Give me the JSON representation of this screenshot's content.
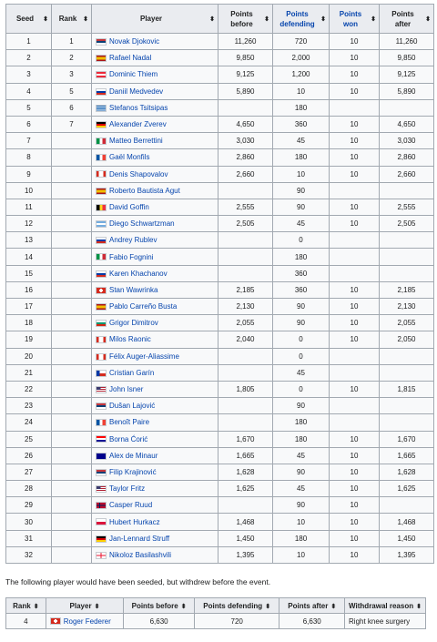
{
  "seeds_table": {
    "headers": {
      "seed": "Seed",
      "rank": "Rank",
      "player": "Player",
      "points_before": "Points before",
      "points_defending": "Points defending",
      "points_won": "Points won",
      "points_after": "Points after"
    },
    "sort_icon": "⬍",
    "rows": [
      {
        "seed": "1",
        "rank": "1",
        "player": "Novak Djokovic",
        "flag": "serbia",
        "before": "11,260",
        "defending": "720",
        "won": "10",
        "after": "11,260"
      },
      {
        "seed": "2",
        "rank": "2",
        "player": "Rafael Nadal",
        "flag": "spain",
        "before": "9,850",
        "defending": "2,000",
        "won": "10",
        "after": "9,850"
      },
      {
        "seed": "3",
        "rank": "3",
        "player": "Dominic Thiem",
        "flag": "austria",
        "before": "9,125",
        "defending": "1,200",
        "won": "10",
        "after": "9,125"
      },
      {
        "seed": "4",
        "rank": "5",
        "player": "Daniil Medvedev",
        "flag": "russia",
        "before": "5,890",
        "defending": "10",
        "won": "10",
        "after": "5,890"
      },
      {
        "seed": "5",
        "rank": "6",
        "player": "Stefanos Tsitsipas",
        "flag": "greece",
        "before": "",
        "defending": "180",
        "won": "",
        "after": ""
      },
      {
        "seed": "6",
        "rank": "7",
        "player": "Alexander Zverev",
        "flag": "germany",
        "before": "4,650",
        "defending": "360",
        "won": "10",
        "after": "4,650"
      },
      {
        "seed": "7",
        "rank": "",
        "player": "Matteo Berrettini",
        "flag": "italy",
        "before": "3,030",
        "defending": "45",
        "won": "10",
        "after": "3,030"
      },
      {
        "seed": "8",
        "rank": "",
        "player": "Gaël Monfils",
        "flag": "france",
        "before": "2,860",
        "defending": "180",
        "won": "10",
        "after": "2,860"
      },
      {
        "seed": "9",
        "rank": "",
        "player": "Denis Shapovalov",
        "flag": "canada",
        "before": "2,660",
        "defending": "10",
        "won": "10",
        "after": "2,660"
      },
      {
        "seed": "10",
        "rank": "",
        "player": "Roberto Bautista Agut",
        "flag": "spain",
        "before": "",
        "defending": "90",
        "won": "",
        "after": ""
      },
      {
        "seed": "11",
        "rank": "",
        "player": "David Goffin",
        "flag": "belgium",
        "before": "2,555",
        "defending": "90",
        "won": "10",
        "after": "2,555"
      },
      {
        "seed": "12",
        "rank": "",
        "player": "Diego Schwartzman",
        "flag": "argentina",
        "before": "2,505",
        "defending": "45",
        "won": "10",
        "after": "2,505"
      },
      {
        "seed": "13",
        "rank": "",
        "player": "Andrey Rublev",
        "flag": "russia",
        "before": "",
        "defending": "0",
        "won": "",
        "after": ""
      },
      {
        "seed": "14",
        "rank": "",
        "player": "Fabio Fognini",
        "flag": "italy",
        "before": "",
        "defending": "180",
        "won": "",
        "after": ""
      },
      {
        "seed": "15",
        "rank": "",
        "player": "Karen Khachanov",
        "flag": "russia",
        "before": "",
        "defending": "360",
        "won": "",
        "after": ""
      },
      {
        "seed": "16",
        "rank": "",
        "player": "Stan Wawrinka",
        "flag": "switzerland",
        "before": "2,185",
        "defending": "360",
        "won": "10",
        "after": "2,185"
      },
      {
        "seed": "17",
        "rank": "",
        "player": "Pablo Carreño Busta",
        "flag": "spain",
        "before": "2,130",
        "defending": "90",
        "won": "10",
        "after": "2,130"
      },
      {
        "seed": "18",
        "rank": "",
        "player": "Grigor Dimitrov",
        "flag": "bulgaria",
        "before": "2,055",
        "defending": "90",
        "won": "10",
        "after": "2,055"
      },
      {
        "seed": "19",
        "rank": "",
        "player": "Milos Raonic",
        "flag": "canada",
        "before": "2,040",
        "defending": "0",
        "won": "10",
        "after": "2,050"
      },
      {
        "seed": "20",
        "rank": "",
        "player": "Félix Auger-Aliassime",
        "flag": "canada",
        "before": "",
        "defending": "0",
        "won": "",
        "after": ""
      },
      {
        "seed": "21",
        "rank": "",
        "player": "Cristian Garín",
        "flag": "chile",
        "before": "",
        "defending": "45",
        "won": "",
        "after": ""
      },
      {
        "seed": "22",
        "rank": "",
        "player": "John Isner",
        "flag": "usa",
        "before": "1,805",
        "defending": "0",
        "won": "10",
        "after": "1,815"
      },
      {
        "seed": "23",
        "rank": "",
        "player": "Dušan Lajović",
        "flag": "serbia",
        "before": "",
        "defending": "90",
        "won": "",
        "after": ""
      },
      {
        "seed": "24",
        "rank": "",
        "player": "Benoît Paire",
        "flag": "france",
        "before": "",
        "defending": "180",
        "won": "",
        "after": ""
      },
      {
        "seed": "25",
        "rank": "",
        "player": "Borna Ćorić",
        "flag": "croatia",
        "before": "1,670",
        "defending": "180",
        "won": "10",
        "after": "1,670"
      },
      {
        "seed": "26",
        "rank": "",
        "player": "Alex de Minaur",
        "flag": "australia",
        "before": "1,665",
        "defending": "45",
        "won": "10",
        "after": "1,665"
      },
      {
        "seed": "27",
        "rank": "",
        "player": "Filip Krajinović",
        "flag": "serbia",
        "before": "1,628",
        "defending": "90",
        "won": "10",
        "after": "1,628"
      },
      {
        "seed": "28",
        "rank": "",
        "player": "Taylor Fritz",
        "flag": "usa",
        "before": "1,625",
        "defending": "45",
        "won": "10",
        "after": "1,625"
      },
      {
        "seed": "29",
        "rank": "",
        "player": "Casper Ruud",
        "flag": "norway",
        "before": "",
        "defending": "90",
        "won": "10",
        "after": ""
      },
      {
        "seed": "30",
        "rank": "",
        "player": "Hubert Hurkacz",
        "flag": "poland",
        "before": "1,468",
        "defending": "10",
        "won": "10",
        "after": "1,468"
      },
      {
        "seed": "31",
        "rank": "",
        "player": "Jan-Lennard Struff",
        "flag": "germany",
        "before": "1,450",
        "defending": "180",
        "won": "10",
        "after": "1,450"
      },
      {
        "seed": "32",
        "rank": "",
        "player": "Nikoloz Basilashvili",
        "flag": "georgia",
        "before": "1,395",
        "defending": "10",
        "won": "10",
        "after": "1,395"
      }
    ]
  },
  "note": "The following player would have been seeded, but withdrew before the event.",
  "withdrawn_table": {
    "headers": {
      "rank": "Rank",
      "player": "Player",
      "points_before": "Points before",
      "points_defending": "Points defending",
      "points_after": "Points after",
      "reason": "Withdrawal reason"
    },
    "rows": [
      {
        "rank": "4",
        "player": "Roger Federer",
        "flag": "switzerland",
        "before": "6,630",
        "defending": "720",
        "after": "6,630",
        "reason": "Right knee surgery"
      }
    ]
  },
  "colors": {
    "link": "#0645ad",
    "header_bg": "#eaecf0",
    "cell_bg": "#f8f9fa",
    "border": "#a2a9b1"
  }
}
